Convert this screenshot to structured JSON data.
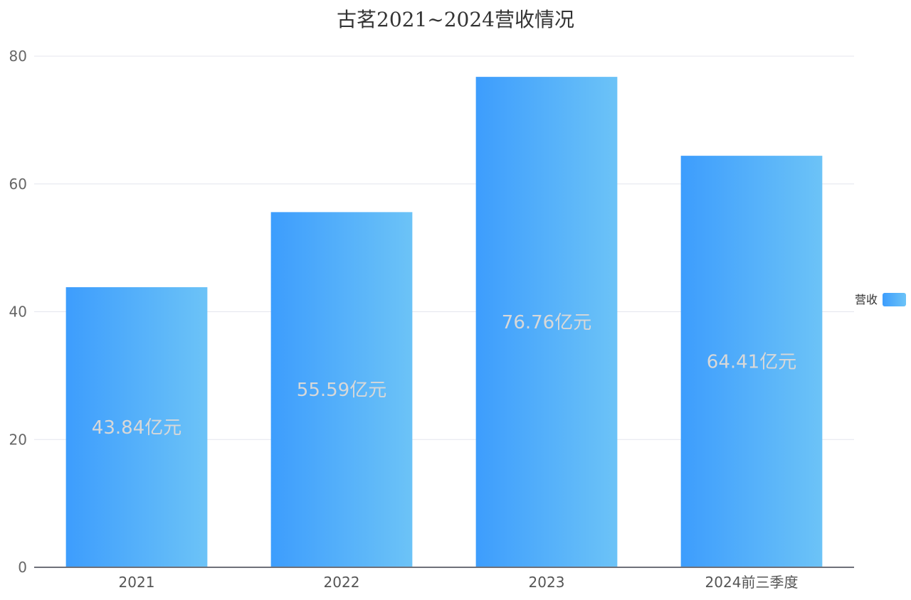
{
  "chart_data": {
    "type": "bar",
    "title": "古茗2021~2024营收情况",
    "categories": [
      "2021",
      "2022",
      "2023",
      "2024前三季度"
    ],
    "series": [
      {
        "name": "营收",
        "values": [
          43.84,
          55.59,
          76.76,
          64.41
        ],
        "data_labels": [
          "43.84亿元",
          "55.59亿元",
          "76.76亿元",
          "64.41亿元"
        ]
      }
    ],
    "ylim": [
      0,
      80
    ],
    "yticks": [
      0,
      20,
      40,
      60,
      80
    ],
    "grid": true,
    "legend_position": "right",
    "colors": {
      "bar_start": "#3d9dfd",
      "bar_end": "#6cc3f7",
      "label": "#d8d8d8",
      "grid": "#e4e6ee",
      "axis": "#6e7079"
    }
  }
}
